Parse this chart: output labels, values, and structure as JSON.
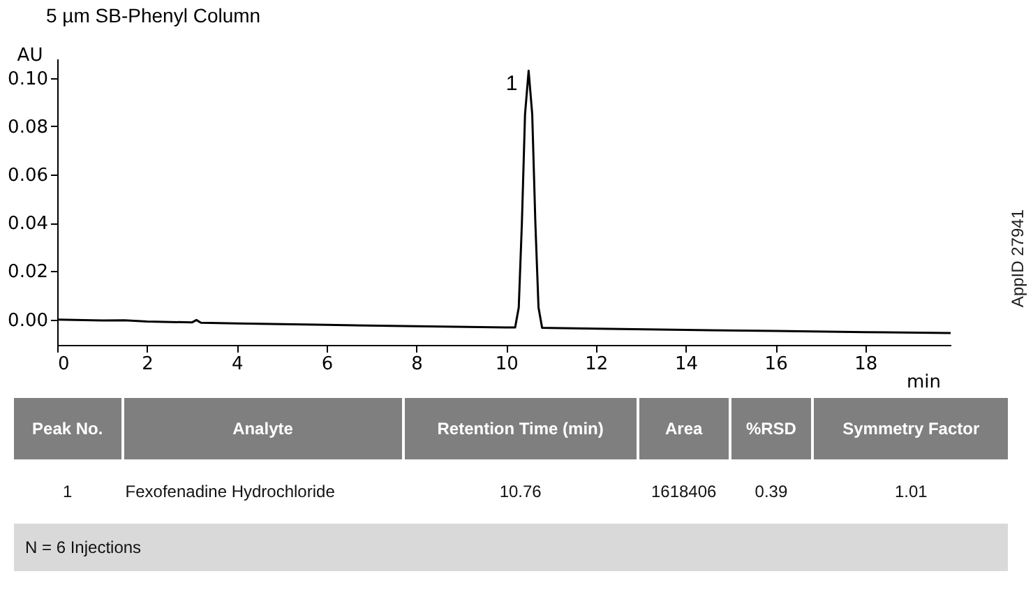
{
  "chart_data": [
    {
      "type": "line",
      "title": "5 µm SB-Phenyl Column",
      "xlabel": "min",
      "ylabel": "AU",
      "x": [
        0,
        1,
        1.5,
        2,
        3,
        3.1,
        3.2,
        4,
        6,
        8,
        10,
        10.2,
        10.28,
        10.35,
        10.42,
        10.5,
        10.58,
        10.65,
        10.72,
        10.8,
        11,
        12,
        14,
        16,
        18,
        19.9
      ],
      "series": [
        {
          "color": "#000000",
          "values": [
            0.0,
            -0.0004,
            -0.0003,
            -0.0008,
            -0.0012,
            -0.0002,
            -0.0013,
            -0.0016,
            -0.0022,
            -0.0028,
            -0.0033,
            -0.0033,
            0.005,
            0.04,
            0.085,
            0.103,
            0.085,
            0.04,
            0.005,
            -0.0034,
            -0.0035,
            -0.0038,
            -0.0043,
            -0.0047,
            -0.0052,
            -0.0056
          ]
        }
      ],
      "xlim": [
        0,
        19.9
      ],
      "xticks": [
        0,
        2,
        4,
        6,
        8,
        10,
        12,
        14,
        16,
        18
      ],
      "ylim": [
        -0.0105,
        0.108
      ],
      "yticks": [
        {
          "value": 0,
          "label": "0.00"
        },
        {
          "value": 0.02,
          "label": "0.02"
        },
        {
          "value": 0.04,
          "label": "0.04"
        },
        {
          "value": 0.06,
          "label": "0.06"
        },
        {
          "value": 0.08,
          "label": "0.08"
        },
        {
          "value": 0.1,
          "label": "0.10"
        }
      ],
      "annotations": [
        {
          "text": "1",
          "x": 10.5,
          "y": 0.103
        },
        "AppID 27941"
      ],
      "grid": false,
      "legend": false,
      "marker": "none",
      "line_style": "solid"
    },
    {
      "type": "other",
      "categories": [
        "Peak No.",
        "Analyte",
        "Retention Time (min)",
        "Area",
        "%RSD",
        "Symmetry Factor"
      ],
      "annotations": [
        "1",
        "Fexofenadine Hydrochloride",
        "10.76",
        "1618406",
        "0.39",
        "1.01",
        "N = 6 Injections"
      ]
    }
  ]
}
